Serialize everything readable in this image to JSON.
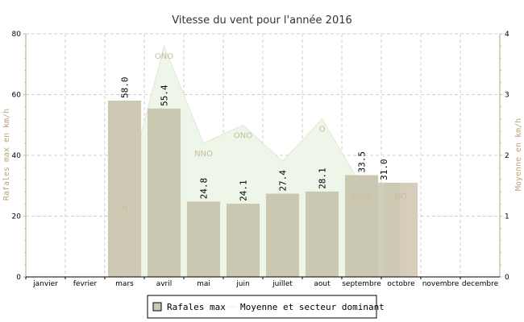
{
  "chart_data": {
    "type": "bar",
    "title": "Vitesse du vent pour l'année 2016",
    "ylabel": "Rafales max en km/h",
    "y2label": "Moyenne en km/h",
    "ylim": [
      0,
      80
    ],
    "y2lim": [
      0,
      4
    ],
    "yticks": [
      "0",
      "20",
      "40",
      "60",
      "80"
    ],
    "y2ticks": [
      "0",
      "1",
      "2",
      "3",
      "4"
    ],
    "grid": true,
    "legend_position": "bottom",
    "categories": [
      "janvier",
      "fevrier",
      "mars",
      "avril",
      "mai",
      "juin",
      "juillet",
      "aout",
      "septembre",
      "octobre",
      "novembre",
      "decembre"
    ],
    "series": [
      {
        "name": "Rafales max",
        "type": "bar",
        "axis": "left",
        "values": [
          null,
          null,
          58.0,
          55.4,
          24.8,
          24.1,
          27.4,
          28.1,
          33.5,
          31.0,
          null,
          null
        ],
        "labels": [
          "",
          "",
          "58.0",
          "55.4",
          "24.8",
          "24.1",
          "27.4",
          "28.1",
          "33.5",
          "31.0",
          "",
          ""
        ],
        "color": "#cbc8b2"
      },
      {
        "name": "Moyenne et secteur dominant",
        "type": "area",
        "axis": "right",
        "values": [
          null,
          null,
          1.3,
          3.8,
          2.2,
          2.5,
          1.9,
          2.6,
          1.5,
          1.5,
          null,
          null
        ],
        "sectors": [
          "",
          "",
          "N",
          "ONO",
          "NNO",
          "ONO",
          "",
          "O",
          "ONO",
          "NO",
          "",
          ""
        ],
        "color": "#eef6ea"
      }
    ],
    "highlight_color": "#d8ccbc",
    "highlight_indices": [
      2,
      9
    ]
  }
}
